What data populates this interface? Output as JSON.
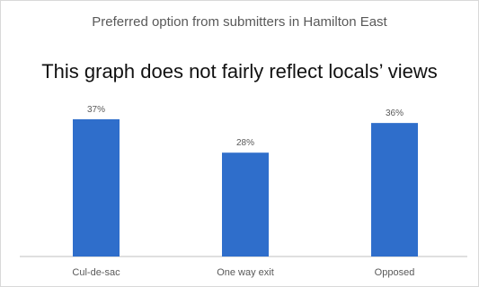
{
  "chart_data": {
    "type": "bar",
    "title": "Preferred option from submitters in Hamilton East",
    "annotation": "This graph does not fairly reflect locals’ views",
    "categories": [
      "Cul-de-sac",
      "One way exit",
      "Opposed"
    ],
    "values": [
      37,
      28,
      36
    ],
    "value_labels": [
      "37%",
      "28%",
      "36%"
    ],
    "xlabel": "",
    "ylabel": "",
    "ylim": [
      0,
      37
    ],
    "grid": false,
    "legend": "none",
    "bar_color": "#2f6ecb",
    "axis_color": "#bfbfbf",
    "label_color": "#595959"
  }
}
